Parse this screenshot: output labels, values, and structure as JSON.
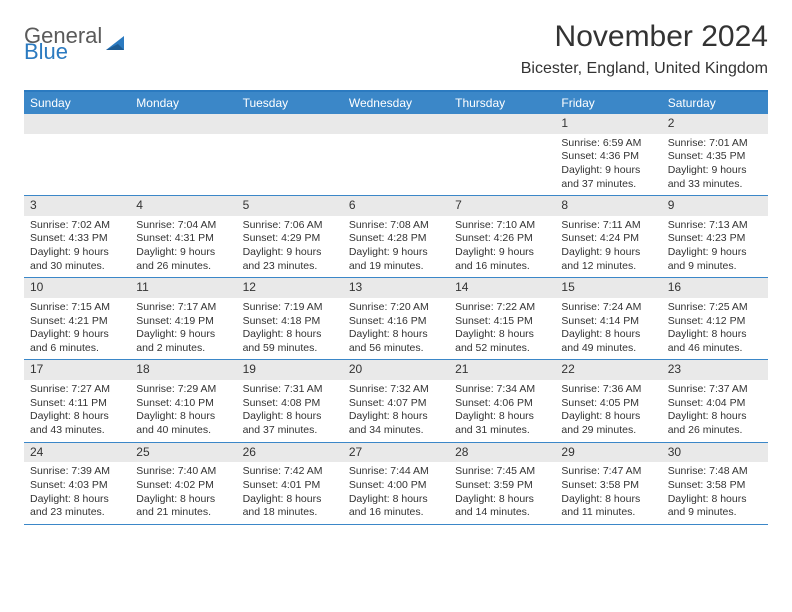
{
  "brand": {
    "line1": "General",
    "line2": "Blue"
  },
  "title": "November 2024",
  "location": "Bicester, England, United Kingdom",
  "colors": {
    "header_blue": "#3b87c8",
    "accent_blue": "#2b7ac0",
    "band_gray": "#e9e9e9",
    "text": "#333333",
    "logo_gray": "#5a5a5a"
  },
  "day_names": [
    "Sunday",
    "Monday",
    "Tuesday",
    "Wednesday",
    "Thursday",
    "Friday",
    "Saturday"
  ],
  "weeks": [
    [
      {
        "n": "",
        "sun": "",
        "set": "",
        "dl1": "",
        "dl2": ""
      },
      {
        "n": "",
        "sun": "",
        "set": "",
        "dl1": "",
        "dl2": ""
      },
      {
        "n": "",
        "sun": "",
        "set": "",
        "dl1": "",
        "dl2": ""
      },
      {
        "n": "",
        "sun": "",
        "set": "",
        "dl1": "",
        "dl2": ""
      },
      {
        "n": "",
        "sun": "",
        "set": "",
        "dl1": "",
        "dl2": ""
      },
      {
        "n": "1",
        "sun": "Sunrise: 6:59 AM",
        "set": "Sunset: 4:36 PM",
        "dl1": "Daylight: 9 hours",
        "dl2": "and 37 minutes."
      },
      {
        "n": "2",
        "sun": "Sunrise: 7:01 AM",
        "set": "Sunset: 4:35 PM",
        "dl1": "Daylight: 9 hours",
        "dl2": "and 33 minutes."
      }
    ],
    [
      {
        "n": "3",
        "sun": "Sunrise: 7:02 AM",
        "set": "Sunset: 4:33 PM",
        "dl1": "Daylight: 9 hours",
        "dl2": "and 30 minutes."
      },
      {
        "n": "4",
        "sun": "Sunrise: 7:04 AM",
        "set": "Sunset: 4:31 PM",
        "dl1": "Daylight: 9 hours",
        "dl2": "and 26 minutes."
      },
      {
        "n": "5",
        "sun": "Sunrise: 7:06 AM",
        "set": "Sunset: 4:29 PM",
        "dl1": "Daylight: 9 hours",
        "dl2": "and 23 minutes."
      },
      {
        "n": "6",
        "sun": "Sunrise: 7:08 AM",
        "set": "Sunset: 4:28 PM",
        "dl1": "Daylight: 9 hours",
        "dl2": "and 19 minutes."
      },
      {
        "n": "7",
        "sun": "Sunrise: 7:10 AM",
        "set": "Sunset: 4:26 PM",
        "dl1": "Daylight: 9 hours",
        "dl2": "and 16 minutes."
      },
      {
        "n": "8",
        "sun": "Sunrise: 7:11 AM",
        "set": "Sunset: 4:24 PM",
        "dl1": "Daylight: 9 hours",
        "dl2": "and 12 minutes."
      },
      {
        "n": "9",
        "sun": "Sunrise: 7:13 AM",
        "set": "Sunset: 4:23 PM",
        "dl1": "Daylight: 9 hours",
        "dl2": "and 9 minutes."
      }
    ],
    [
      {
        "n": "10",
        "sun": "Sunrise: 7:15 AM",
        "set": "Sunset: 4:21 PM",
        "dl1": "Daylight: 9 hours",
        "dl2": "and 6 minutes."
      },
      {
        "n": "11",
        "sun": "Sunrise: 7:17 AM",
        "set": "Sunset: 4:19 PM",
        "dl1": "Daylight: 9 hours",
        "dl2": "and 2 minutes."
      },
      {
        "n": "12",
        "sun": "Sunrise: 7:19 AM",
        "set": "Sunset: 4:18 PM",
        "dl1": "Daylight: 8 hours",
        "dl2": "and 59 minutes."
      },
      {
        "n": "13",
        "sun": "Sunrise: 7:20 AM",
        "set": "Sunset: 4:16 PM",
        "dl1": "Daylight: 8 hours",
        "dl2": "and 56 minutes."
      },
      {
        "n": "14",
        "sun": "Sunrise: 7:22 AM",
        "set": "Sunset: 4:15 PM",
        "dl1": "Daylight: 8 hours",
        "dl2": "and 52 minutes."
      },
      {
        "n": "15",
        "sun": "Sunrise: 7:24 AM",
        "set": "Sunset: 4:14 PM",
        "dl1": "Daylight: 8 hours",
        "dl2": "and 49 minutes."
      },
      {
        "n": "16",
        "sun": "Sunrise: 7:25 AM",
        "set": "Sunset: 4:12 PM",
        "dl1": "Daylight: 8 hours",
        "dl2": "and 46 minutes."
      }
    ],
    [
      {
        "n": "17",
        "sun": "Sunrise: 7:27 AM",
        "set": "Sunset: 4:11 PM",
        "dl1": "Daylight: 8 hours",
        "dl2": "and 43 minutes."
      },
      {
        "n": "18",
        "sun": "Sunrise: 7:29 AM",
        "set": "Sunset: 4:10 PM",
        "dl1": "Daylight: 8 hours",
        "dl2": "and 40 minutes."
      },
      {
        "n": "19",
        "sun": "Sunrise: 7:31 AM",
        "set": "Sunset: 4:08 PM",
        "dl1": "Daylight: 8 hours",
        "dl2": "and 37 minutes."
      },
      {
        "n": "20",
        "sun": "Sunrise: 7:32 AM",
        "set": "Sunset: 4:07 PM",
        "dl1": "Daylight: 8 hours",
        "dl2": "and 34 minutes."
      },
      {
        "n": "21",
        "sun": "Sunrise: 7:34 AM",
        "set": "Sunset: 4:06 PM",
        "dl1": "Daylight: 8 hours",
        "dl2": "and 31 minutes."
      },
      {
        "n": "22",
        "sun": "Sunrise: 7:36 AM",
        "set": "Sunset: 4:05 PM",
        "dl1": "Daylight: 8 hours",
        "dl2": "and 29 minutes."
      },
      {
        "n": "23",
        "sun": "Sunrise: 7:37 AM",
        "set": "Sunset: 4:04 PM",
        "dl1": "Daylight: 8 hours",
        "dl2": "and 26 minutes."
      }
    ],
    [
      {
        "n": "24",
        "sun": "Sunrise: 7:39 AM",
        "set": "Sunset: 4:03 PM",
        "dl1": "Daylight: 8 hours",
        "dl2": "and 23 minutes."
      },
      {
        "n": "25",
        "sun": "Sunrise: 7:40 AM",
        "set": "Sunset: 4:02 PM",
        "dl1": "Daylight: 8 hours",
        "dl2": "and 21 minutes."
      },
      {
        "n": "26",
        "sun": "Sunrise: 7:42 AM",
        "set": "Sunset: 4:01 PM",
        "dl1": "Daylight: 8 hours",
        "dl2": "and 18 minutes."
      },
      {
        "n": "27",
        "sun": "Sunrise: 7:44 AM",
        "set": "Sunset: 4:00 PM",
        "dl1": "Daylight: 8 hours",
        "dl2": "and 16 minutes."
      },
      {
        "n": "28",
        "sun": "Sunrise: 7:45 AM",
        "set": "Sunset: 3:59 PM",
        "dl1": "Daylight: 8 hours",
        "dl2": "and 14 minutes."
      },
      {
        "n": "29",
        "sun": "Sunrise: 7:47 AM",
        "set": "Sunset: 3:58 PM",
        "dl1": "Daylight: 8 hours",
        "dl2": "and 11 minutes."
      },
      {
        "n": "30",
        "sun": "Sunrise: 7:48 AM",
        "set": "Sunset: 3:58 PM",
        "dl1": "Daylight: 8 hours",
        "dl2": "and 9 minutes."
      }
    ]
  ]
}
